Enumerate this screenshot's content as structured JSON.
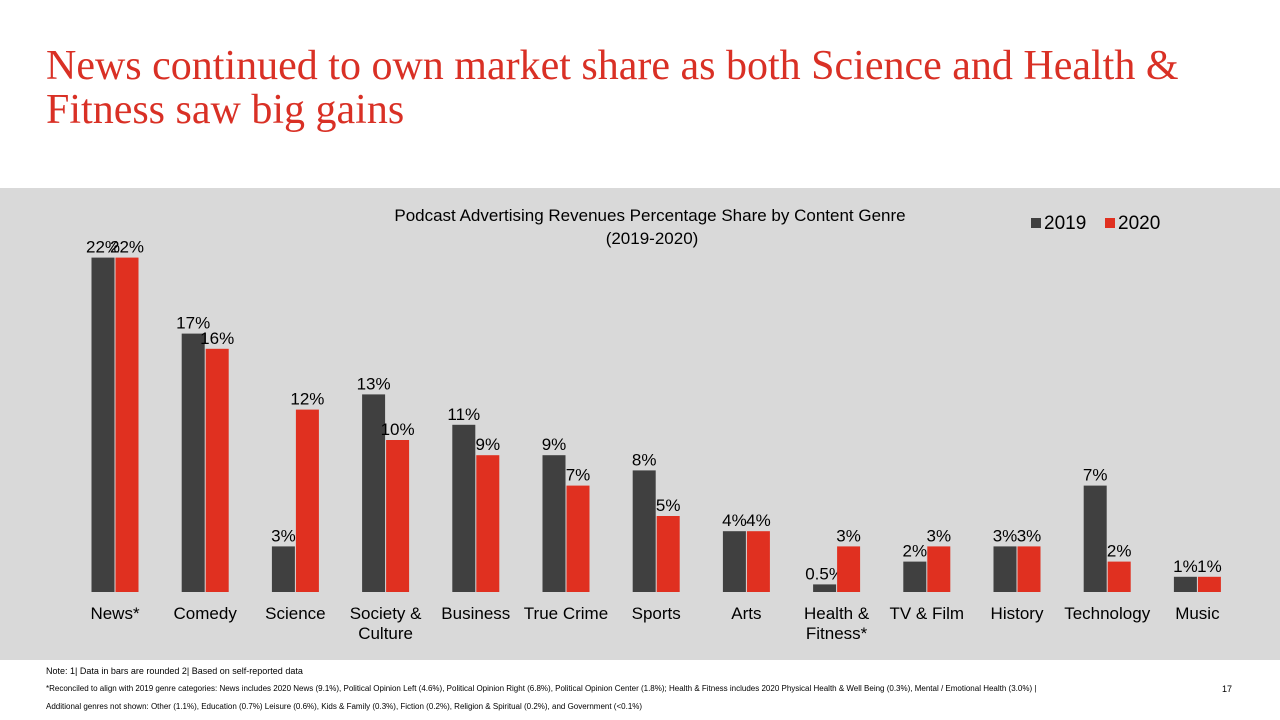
{
  "title": "News continued to own market share as both Science and Health & Fitness saw big gains",
  "colors": {
    "series_2019": "#404040",
    "series_2020": "#e03020",
    "panel_bg": "#d9d9d9",
    "title": "#d93025"
  },
  "chart_data": {
    "type": "bar",
    "title_line1": "Podcast Advertising Revenues Percentage Share by Content Genre",
    "title_line2": "(2019-2020)",
    "categories": [
      [
        "News*"
      ],
      [
        "Comedy"
      ],
      [
        "Science"
      ],
      [
        "Society &",
        "Culture"
      ],
      [
        "Business"
      ],
      [
        "True Crime"
      ],
      [
        "Sports"
      ],
      [
        "Arts"
      ],
      [
        "Health &",
        "Fitness*"
      ],
      [
        "TV & Film"
      ],
      [
        "History"
      ],
      [
        "Technology"
      ],
      [
        "Music"
      ]
    ],
    "series": [
      {
        "name": "2019",
        "values": [
          22,
          17,
          3,
          13,
          11,
          9,
          8,
          4,
          0.5,
          2,
          3,
          7,
          1
        ],
        "labels": [
          "22%",
          "17%",
          "3%",
          "13%",
          "11%",
          "9%",
          "8%",
          "4%",
          "0.5%",
          "2%",
          "3%",
          "7%",
          "1%"
        ]
      },
      {
        "name": "2020",
        "values": [
          22,
          16,
          12,
          10,
          9,
          7,
          5,
          4,
          3,
          3,
          3,
          2,
          1
        ],
        "labels": [
          "22%",
          "16%",
          "12%",
          "10%",
          "9%",
          "7%",
          "5%",
          "4%",
          "3%",
          "3%",
          "3%",
          "2%",
          "1%"
        ]
      }
    ],
    "legend_position": "top-right",
    "grid": false
  },
  "footnotes": {
    "note1": "Note: 1| Data in bars are rounded 2| Based on self-reported data",
    "note2": "*Reconciled to align with 2019 genre categories: News includes 2020 News (9.1%), Political Opinion Left (4.6%), Political Opinion Right (6.8%), Political Opinion Center (1.8%); Health & Fitness includes 2020 Physical Health & Well Being (0.3%), Mental / Emotional Health (3.0%)  |",
    "note3": "Additional genres not shown: Other (1.1%), Education (0.7%) Leisure (0.6%), Kids & Family (0.3%), Fiction (0.2%), Religion & Spiritual (0.2%), and Government (<0.1%)"
  },
  "page_number": "17"
}
